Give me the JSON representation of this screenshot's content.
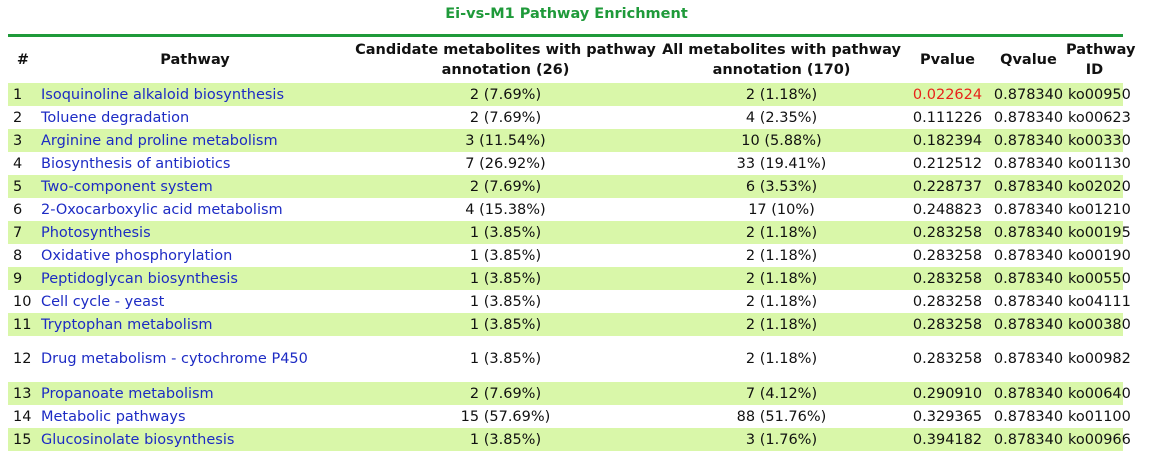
{
  "title": "Ei-vs-M1 Pathway Enrichment",
  "colors": {
    "accent_green": "#1f9a3a",
    "row_stripe": "#d9f7a9",
    "link_blue": "#1d2bc4",
    "significant_red": "#e8231a"
  },
  "table": {
    "headers": {
      "num": "#",
      "pathway": "Pathway",
      "candidate": "Candidate metabolites with pathway annotation (26)",
      "all": "All metabolites with pathway annotation (170)",
      "pvalue": "Pvalue",
      "qvalue": "Qvalue",
      "pathway_id": "Pathway ID"
    },
    "rows": [
      {
        "num": "1",
        "pathway": "Isoquinoline alkaloid biosynthesis",
        "candidate": "2 (7.69%)",
        "all": "2 (1.18%)",
        "pvalue": "0.022624",
        "qvalue": "0.878340",
        "id": "ko00950"
      },
      {
        "num": "2",
        "pathway": "Toluene degradation",
        "candidate": "2 (7.69%)",
        "all": "4 (2.35%)",
        "pvalue": "0.111226",
        "qvalue": "0.878340",
        "id": "ko00623"
      },
      {
        "num": "3",
        "pathway": "Arginine and proline metabolism",
        "candidate": "3 (11.54%)",
        "all": "10 (5.88%)",
        "pvalue": "0.182394",
        "qvalue": "0.878340",
        "id": "ko00330"
      },
      {
        "num": "4",
        "pathway": "Biosynthesis of antibiotics",
        "candidate": "7 (26.92%)",
        "all": "33 (19.41%)",
        "pvalue": "0.212512",
        "qvalue": "0.878340",
        "id": "ko01130"
      },
      {
        "num": "5",
        "pathway": "Two-component system",
        "candidate": "2 (7.69%)",
        "all": "6 (3.53%)",
        "pvalue": "0.228737",
        "qvalue": "0.878340",
        "id": "ko02020"
      },
      {
        "num": "6",
        "pathway": "2-Oxocarboxylic acid metabolism",
        "candidate": "4 (15.38%)",
        "all": "17 (10%)",
        "pvalue": "0.248823",
        "qvalue": "0.878340",
        "id": "ko01210"
      },
      {
        "num": "7",
        "pathway": "Photosynthesis",
        "candidate": "1 (3.85%)",
        "all": "2 (1.18%)",
        "pvalue": "0.283258",
        "qvalue": "0.878340",
        "id": "ko00195"
      },
      {
        "num": "8",
        "pathway": "Oxidative phosphorylation",
        "candidate": "1 (3.85%)",
        "all": "2 (1.18%)",
        "pvalue": "0.283258",
        "qvalue": "0.878340",
        "id": "ko00190"
      },
      {
        "num": "9",
        "pathway": "Peptidoglycan biosynthesis",
        "candidate": "1 (3.85%)",
        "all": "2 (1.18%)",
        "pvalue": "0.283258",
        "qvalue": "0.878340",
        "id": "ko00550"
      },
      {
        "num": "10",
        "pathway": "Cell cycle - yeast",
        "candidate": "1 (3.85%)",
        "all": "2 (1.18%)",
        "pvalue": "0.283258",
        "qvalue": "0.878340",
        "id": "ko04111"
      },
      {
        "num": "11",
        "pathway": "Tryptophan metabolism",
        "candidate": "1 (3.85%)",
        "all": "2 (1.18%)",
        "pvalue": "0.283258",
        "qvalue": "0.878340",
        "id": "ko00380"
      },
      {
        "num": "12",
        "pathway": "Drug metabolism - cytochrome P450",
        "candidate": "1 (3.85%)",
        "all": "2 (1.18%)",
        "pvalue": "0.283258",
        "qvalue": "0.878340",
        "id": "ko00982"
      },
      {
        "num": "13",
        "pathway": "Propanoate metabolism",
        "candidate": "2 (7.69%)",
        "all": "7 (4.12%)",
        "pvalue": "0.290910",
        "qvalue": "0.878340",
        "id": "ko00640"
      },
      {
        "num": "14",
        "pathway": "Metabolic pathways",
        "candidate": "15 (57.69%)",
        "all": "88 (51.76%)",
        "pvalue": "0.329365",
        "qvalue": "0.878340",
        "id": "ko01100"
      },
      {
        "num": "15",
        "pathway": "Glucosinolate biosynthesis",
        "candidate": "1 (3.85%)",
        "all": "3 (1.76%)",
        "pvalue": "0.394182",
        "qvalue": "0.878340",
        "id": "ko00966"
      }
    ]
  }
}
